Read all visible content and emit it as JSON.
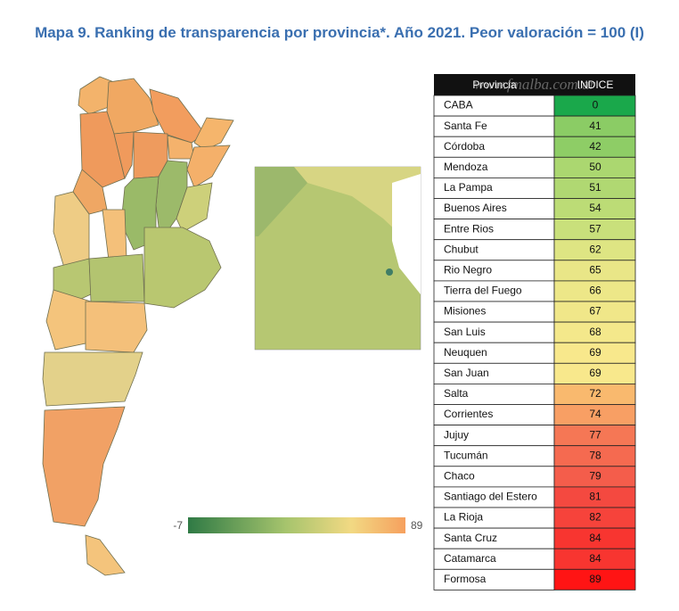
{
  "header": {
    "title": "Mapa 9. Ranking de transparencia por provincia*. Año 2021. Peor valoración = 100 (I)"
  },
  "legend": {
    "min": "-7",
    "max": "89"
  },
  "table": {
    "watermark": "www.fmalba.com.ar",
    "columns": [
      "Provincia",
      "INDICE"
    ],
    "rows": [
      [
        "CABA",
        0
      ],
      [
        "Santa Fe",
        41
      ],
      [
        "Córdoba",
        42
      ],
      [
        "Mendoza",
        50
      ],
      [
        "La Pampa",
        51
      ],
      [
        "Buenos Aires",
        54
      ],
      [
        "Entre Rios",
        57
      ],
      [
        "Chubut",
        62
      ],
      [
        "Rio Negro",
        65
      ],
      [
        "Tierra del Fuego",
        66
      ],
      [
        "Misiones",
        67
      ],
      [
        "San Luis",
        68
      ],
      [
        "Neuquen",
        69
      ],
      [
        "San Juan",
        69
      ],
      [
        "Salta",
        72
      ],
      [
        "Corrientes",
        74
      ],
      [
        "Jujuy",
        77
      ],
      [
        "Tucumán",
        78
      ],
      [
        "Chaco",
        79
      ],
      [
        "Santiago del Estero",
        81
      ],
      [
        "La Rioja",
        82
      ],
      [
        "Santa Cruz",
        84
      ],
      [
        "Catamarca",
        84
      ],
      [
        "Formosa",
        89
      ]
    ]
  }
}
